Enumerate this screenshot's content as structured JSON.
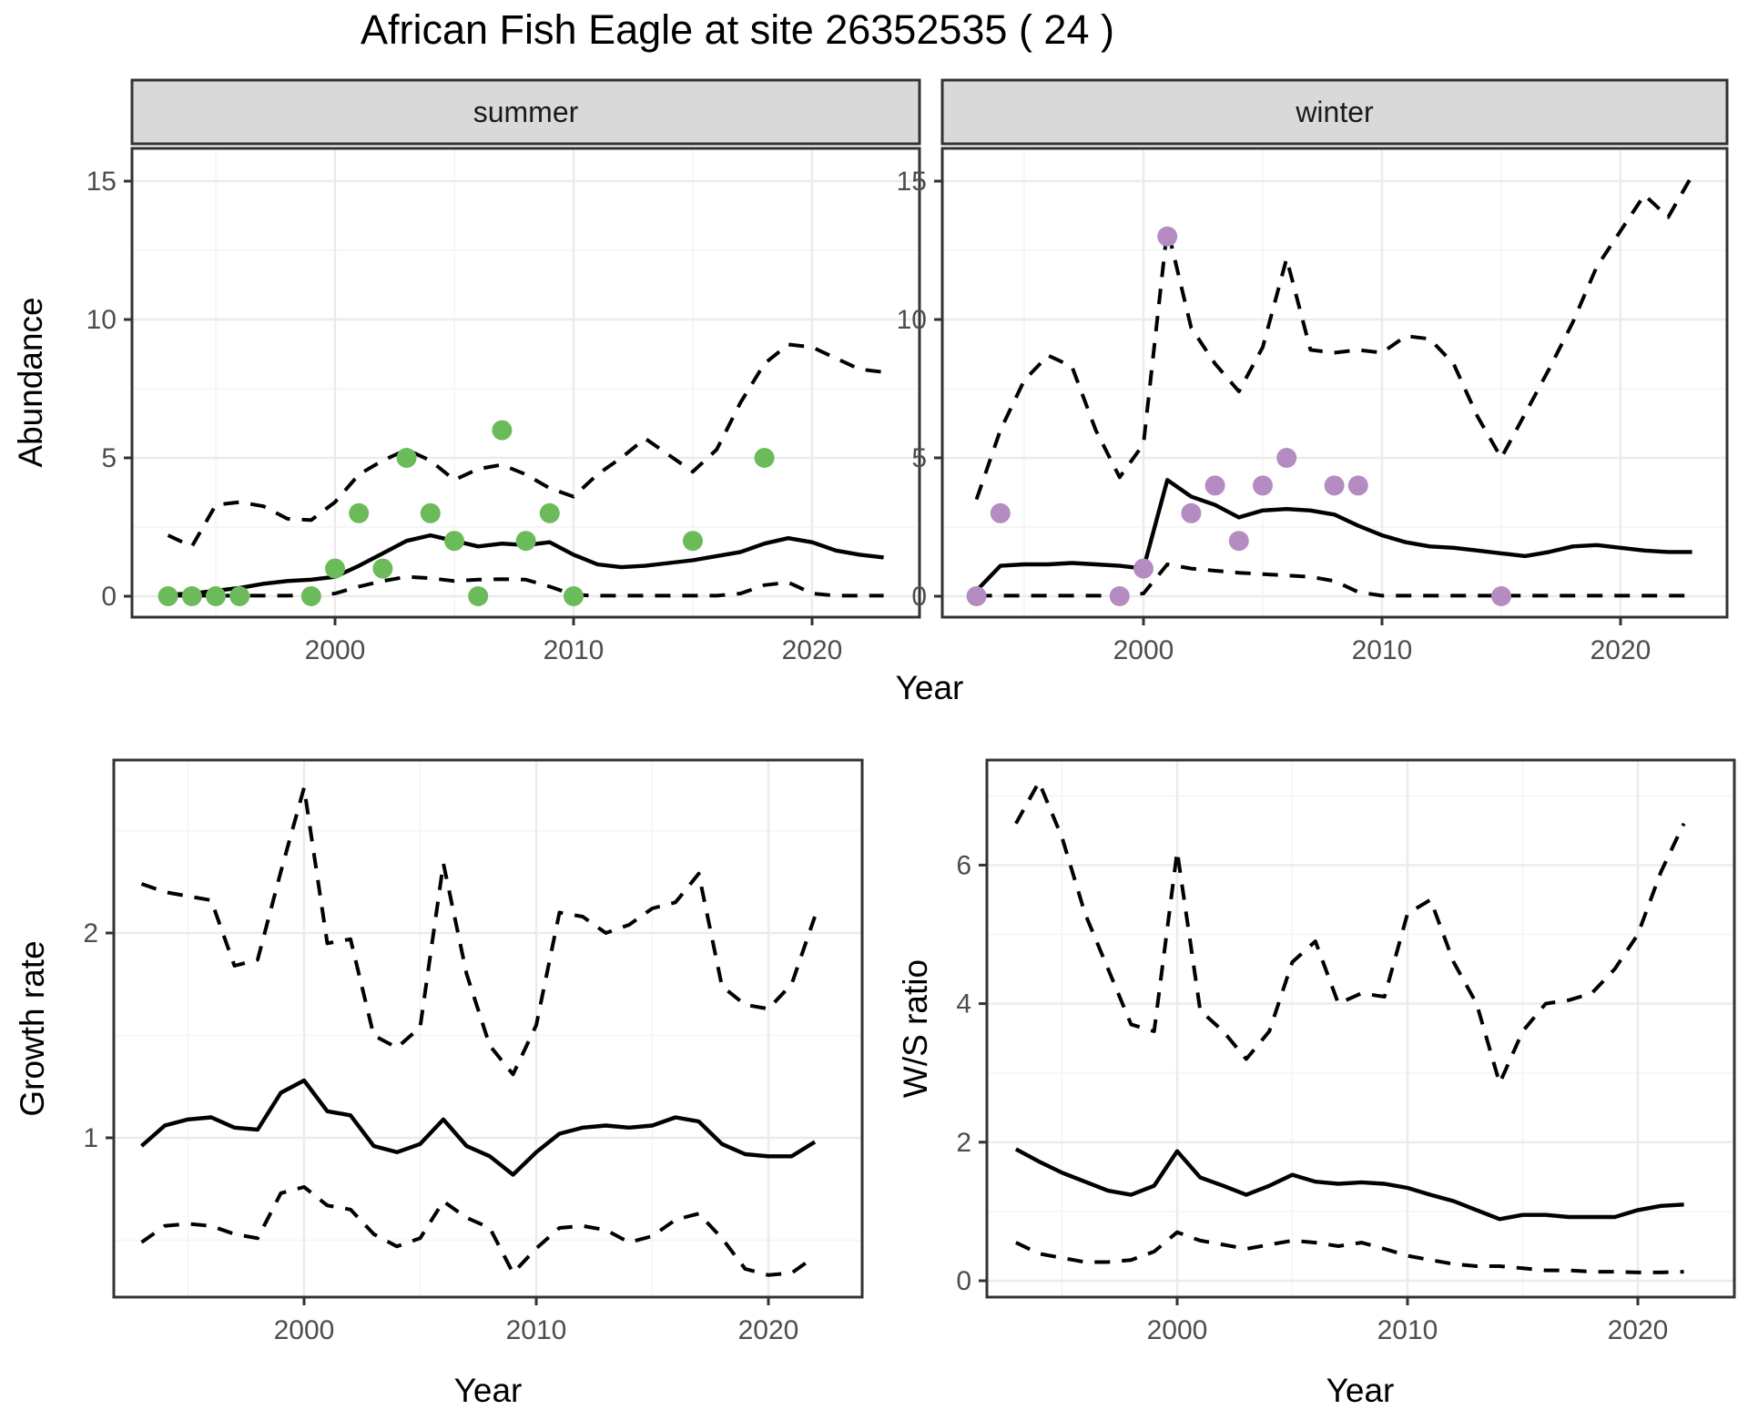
{
  "title": "African Fish Eagle at site 26352535 ( 24 )",
  "strips": {
    "summer": "summer",
    "winter": "winter"
  },
  "labels": {
    "abundance": "Abundance",
    "year": "Year",
    "growth_rate": "Growth rate",
    "ws_ratio": "W/S ratio"
  },
  "colors": {
    "summer_points": "#6CBB5A",
    "winter_points": "#B48CC2",
    "line": "#000000",
    "strip_bg": "#D9D9D9",
    "grid_major": "#EBEBEB",
    "tick_text": "#4D4D4D"
  },
  "chart_data": [
    {
      "panel": "abundance-summer",
      "type": "line",
      "facet": "summer",
      "ylabel": "Abundance",
      "xlabel": "Year",
      "xlim": [
        1991.5,
        2024.5
      ],
      "ylim": [
        -0.7,
        16.3
      ],
      "x_ticks": [
        2000,
        2010,
        2020
      ],
      "x_minor": [
        1995,
        2005,
        2015
      ],
      "y_ticks": [
        0,
        5,
        10,
        15
      ],
      "y_minor": [
        2.5,
        7.5,
        12.5
      ],
      "grid": true,
      "legend": "none",
      "points": {
        "color": "#6CBB5A",
        "x": [
          1993,
          1994,
          1995,
          1996,
          1999,
          2000,
          2001,
          2002,
          2003,
          2004,
          2005,
          2006,
          2007,
          2008,
          2009,
          2010,
          2015,
          2018
        ],
        "y": [
          0,
          0,
          0,
          0,
          0,
          1,
          3,
          1,
          5,
          3,
          2,
          0,
          6,
          2,
          3,
          0,
          2,
          5
        ]
      },
      "series": [
        {
          "name": "dashed-lower",
          "style": "dashed",
          "x_start": 1993,
          "values": [
            0.02,
            0.02,
            0.02,
            0.02,
            0.02,
            0.02,
            0.05,
            0.1,
            0.35,
            0.55,
            0.7,
            0.65,
            0.55,
            0.6,
            0.62,
            0.6,
            0.35,
            0.05,
            0.02,
            0.02,
            0.02,
            0.02,
            0.02,
            0.02,
            0.1,
            0.4,
            0.5,
            0.1,
            0.02,
            0.02,
            0.02
          ]
        },
        {
          "name": "solid",
          "style": "solid",
          "x_start": 1993,
          "values": [
            0.05,
            0.1,
            0.2,
            0.3,
            0.45,
            0.55,
            0.6,
            0.7,
            1.1,
            1.55,
            2.0,
            2.2,
            2.0,
            1.8,
            1.9,
            1.85,
            1.95,
            1.5,
            1.15,
            1.05,
            1.1,
            1.2,
            1.3,
            1.45,
            1.6,
            1.9,
            2.1,
            1.95,
            1.65,
            1.5,
            1.4
          ]
        },
        {
          "name": "dashed-upper",
          "style": "dashed",
          "x_start": 1993,
          "values": [
            2.2,
            1.8,
            3.3,
            3.4,
            3.25,
            2.8,
            2.75,
            3.4,
            4.4,
            4.9,
            5.3,
            4.9,
            4.2,
            4.6,
            4.75,
            4.4,
            3.9,
            3.6,
            4.4,
            5.0,
            5.7,
            5.1,
            4.5,
            5.3,
            7.0,
            8.4,
            9.1,
            9.0,
            8.6,
            8.2,
            8.1
          ]
        }
      ]
    },
    {
      "panel": "abundance-winter",
      "type": "line",
      "facet": "winter",
      "ylabel": "Abundance",
      "xlabel": "Year",
      "xlim": [
        1991.5,
        2024.5
      ],
      "ylim": [
        -0.7,
        16.3
      ],
      "x_ticks": [
        2000,
        2010,
        2020
      ],
      "x_minor": [
        1995,
        2005,
        2015
      ],
      "y_ticks": [
        0,
        5,
        10,
        15
      ],
      "y_minor": [
        2.5,
        7.5,
        12.5
      ],
      "grid": true,
      "legend": "none",
      "points": {
        "color": "#B48CC2",
        "x": [
          1993,
          1994,
          1999,
          2000,
          2001,
          2002,
          2003,
          2004,
          2005,
          2006,
          2008,
          2009,
          2015
        ],
        "y": [
          0,
          3,
          0,
          1,
          13,
          3,
          4,
          2,
          4,
          5,
          4,
          4,
          0
        ]
      },
      "series": [
        {
          "name": "dashed-lower",
          "style": "dashed",
          "x_start": 1993,
          "values": [
            0.02,
            0.02,
            0.02,
            0.02,
            0.02,
            0.02,
            0.02,
            0.1,
            1.15,
            1.0,
            0.92,
            0.85,
            0.8,
            0.75,
            0.7,
            0.55,
            0.15,
            0.02,
            0.02,
            0.02,
            0.02,
            0.02,
            0.02,
            0.02,
            0.02,
            0.02,
            0.02,
            0.02,
            0.02,
            0.02,
            0.02
          ]
        },
        {
          "name": "solid",
          "style": "solid",
          "x_start": 1993,
          "values": [
            0.2,
            1.1,
            1.15,
            1.15,
            1.2,
            1.15,
            1.1,
            1.0,
            4.2,
            3.6,
            3.3,
            2.85,
            3.1,
            3.15,
            3.1,
            2.95,
            2.55,
            2.2,
            1.95,
            1.8,
            1.75,
            1.65,
            1.55,
            1.45,
            1.6,
            1.8,
            1.85,
            1.75,
            1.65,
            1.6,
            1.6
          ]
        },
        {
          "name": "dashed-upper",
          "style": "dashed",
          "x_start": 1993,
          "values": [
            3.5,
            6.0,
            7.8,
            8.7,
            8.3,
            6.0,
            4.3,
            5.5,
            13.3,
            9.7,
            8.4,
            7.4,
            9.0,
            12.2,
            8.9,
            8.8,
            8.9,
            8.8,
            9.4,
            9.3,
            8.4,
            6.5,
            5.0,
            6.6,
            8.2,
            9.9,
            11.9,
            13.2,
            14.5,
            13.7,
            15.2
          ]
        }
      ]
    },
    {
      "panel": "growth",
      "type": "line",
      "facet": null,
      "ylabel": "Growth rate",
      "xlabel": "Year",
      "xlim": [
        1991.8,
        2024.0
      ],
      "ylim": [
        0.22,
        2.84
      ],
      "x_ticks": [
        2000,
        2010,
        2020
      ],
      "x_minor": [
        1995,
        2005,
        2015
      ],
      "y_ticks": [
        1,
        2
      ],
      "y_minor": [
        0.5,
        1.5,
        2.5
      ],
      "grid": true,
      "legend": "none",
      "points": null,
      "series": [
        {
          "name": "dashed-lower",
          "style": "dashed",
          "x_start": 1993,
          "values": [
            0.49,
            0.57,
            0.58,
            0.57,
            0.53,
            0.51,
            0.73,
            0.76,
            0.67,
            0.65,
            0.53,
            0.47,
            0.51,
            0.69,
            0.61,
            0.56,
            0.34,
            0.46,
            0.56,
            0.57,
            0.55,
            0.49,
            0.52,
            0.6,
            0.63,
            0.51,
            0.36,
            0.33,
            0.34,
            0.42
          ]
        },
        {
          "name": "solid",
          "style": "solid",
          "x_start": 1993,
          "values": [
            0.96,
            1.06,
            1.09,
            1.1,
            1.05,
            1.04,
            1.22,
            1.28,
            1.13,
            1.11,
            0.96,
            0.93,
            0.97,
            1.09,
            0.96,
            0.91,
            0.82,
            0.93,
            1.02,
            1.05,
            1.06,
            1.05,
            1.06,
            1.1,
            1.08,
            0.97,
            0.92,
            0.91,
            0.91,
            0.98
          ]
        },
        {
          "name": "dashed-upper",
          "style": "dashed",
          "x_start": 1993,
          "values": [
            2.24,
            2.2,
            2.18,
            2.16,
            1.84,
            1.87,
            2.3,
            2.71,
            1.95,
            1.97,
            1.5,
            1.44,
            1.54,
            2.34,
            1.8,
            1.45,
            1.31,
            1.55,
            2.1,
            2.08,
            2.0,
            2.04,
            2.12,
            2.15,
            2.29,
            1.74,
            1.65,
            1.63,
            1.75,
            2.08
          ]
        }
      ]
    },
    {
      "panel": "ws",
      "type": "line",
      "facet": null,
      "ylabel": "W/S ratio",
      "xlabel": "Year",
      "xlim": [
        1991.7,
        2024.3
      ],
      "ylim": [
        -0.23,
        7.75
      ],
      "x_ticks": [
        2000,
        2010,
        2020
      ],
      "x_minor": [
        1995,
        2005,
        2015
      ],
      "y_ticks": [
        0,
        2,
        4,
        6
      ],
      "y_minor": [
        1,
        3,
        5,
        7
      ],
      "grid": true,
      "legend": "none",
      "points": null,
      "series": [
        {
          "name": "dashed-lower",
          "style": "dashed",
          "x_start": 1993,
          "values": [
            0.55,
            0.39,
            0.33,
            0.27,
            0.27,
            0.3,
            0.42,
            0.7,
            0.58,
            0.52,
            0.46,
            0.52,
            0.58,
            0.55,
            0.5,
            0.55,
            0.46,
            0.36,
            0.3,
            0.24,
            0.21,
            0.21,
            0.18,
            0.15,
            0.15,
            0.13,
            0.13,
            0.12,
            0.12,
            0.13
          ]
        },
        {
          "name": "solid",
          "style": "solid",
          "x_start": 1993,
          "values": [
            1.9,
            1.72,
            1.56,
            1.43,
            1.3,
            1.24,
            1.37,
            1.87,
            1.49,
            1.37,
            1.24,
            1.37,
            1.53,
            1.43,
            1.4,
            1.42,
            1.4,
            1.34,
            1.24,
            1.15,
            1.02,
            0.89,
            0.95,
            0.95,
            0.92,
            0.92,
            0.92,
            1.02,
            1.08,
            1.1
          ]
        },
        {
          "name": "dashed-upper",
          "style": "dashed",
          "x_start": 1993,
          "values": [
            6.6,
            7.2,
            6.4,
            5.3,
            4.5,
            3.7,
            3.6,
            6.2,
            3.9,
            3.6,
            3.2,
            3.6,
            4.6,
            4.9,
            4.0,
            4.15,
            4.1,
            5.3,
            5.5,
            4.6,
            4.0,
            2.85,
            3.6,
            4.0,
            4.05,
            4.15,
            4.5,
            5.0,
            5.9,
            6.6
          ]
        }
      ]
    }
  ]
}
